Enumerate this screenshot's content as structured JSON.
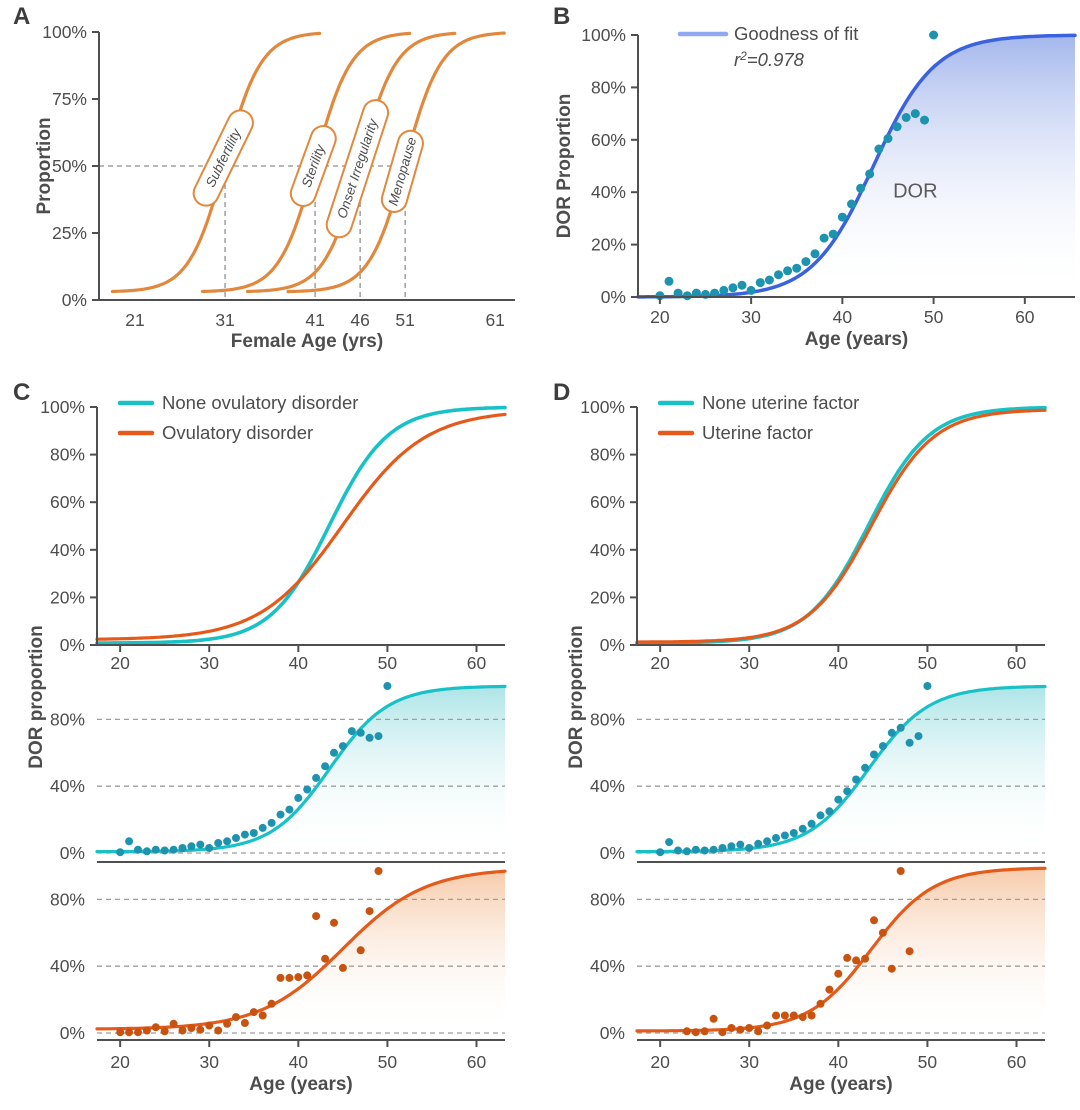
{
  "figure": {
    "description": "Four-panel figure of fertility decline and DOR proportion versus female age"
  },
  "style": {
    "text_color": "#4d4d4d",
    "spine_color": "#4f4f4f",
    "grid_color": "#9e9e9e",
    "guide_color": "#8f8f8f",
    "annotation_color": "#5a5a5a",
    "background": "#ffffff"
  },
  "chart_data": [
    {
      "id": "A",
      "type": "line",
      "xlabel": "Female Age (yrs)",
      "ylabel": "Proportion",
      "x_domain": [
        17.0,
        63.2
      ],
      "xticks": [
        21,
        31,
        41,
        46,
        51,
        61
      ],
      "yticks": [
        0,
        25,
        50,
        75,
        100
      ],
      "ytick_suffix": "%",
      "line_color": "#E2883D",
      "baseline_pct": 3,
      "amplitude_pct": 97,
      "slope_years": 2.0,
      "guide_level_pct": 50,
      "curves": [
        {
          "label": "Subfertility",
          "midpoint_age": 31,
          "draw_range": [
            18.5,
            41.5
          ],
          "label_center": {
            "age": 30.8,
            "pct": 53
          },
          "label_angle": -64
        },
        {
          "label": "Sterility",
          "midpoint_age": 41,
          "draw_range": [
            28.5,
            51.5
          ],
          "label_center": {
            "age": 40.8,
            "pct": 50
          },
          "label_angle": -70
        },
        {
          "label": "Onset Irregularity",
          "midpoint_age": 46,
          "draw_range": [
            33.5,
            56.5
          ],
          "label_center": {
            "age": 45.7,
            "pct": 49
          },
          "label_angle": -72
        },
        {
          "label": "Menopause",
          "midpoint_age": 51,
          "draw_range": [
            38.0,
            62.0
          ],
          "label_center": {
            "age": 50.7,
            "pct": 48
          },
          "label_angle": -74
        }
      ]
    },
    {
      "id": "B",
      "type": "scatter",
      "xlabel": "Age (years)",
      "ylabel": "DOR Proportion",
      "x_domain": [
        17.6,
        65.5
      ],
      "xticks": [
        20,
        30,
        40,
        50,
        60
      ],
      "yticks": [
        0,
        20,
        40,
        60,
        80,
        100
      ],
      "ytick_suffix": "%",
      "legend": {
        "label": "Goodness of fit",
        "stat_prefix": "r",
        "stat_sup": "2",
        "stat_rest": "=0.978",
        "swatch_color": "#8FA8F0"
      },
      "fit": {
        "midpoint_age": 43.4,
        "slope_years": 3.35,
        "base_pct": 0,
        "amplitude_pct": 100,
        "line_color": "#3A62DE",
        "fill_top_color": "#9FB3EC"
      },
      "annotation": {
        "text": "DOR",
        "age": 48,
        "pct": 38
      },
      "scatter": {
        "color": "#1E93B0",
        "points": [
          [
            20,
            0.5
          ],
          [
            21,
            6
          ],
          [
            22,
            1.5
          ],
          [
            23,
            0.5
          ],
          [
            24,
            1.5
          ],
          [
            25,
            1
          ],
          [
            26,
            1.5
          ],
          [
            27,
            2.5
          ],
          [
            28,
            3.5
          ],
          [
            29,
            4.5
          ],
          [
            30,
            2.5
          ],
          [
            31,
            5.5
          ],
          [
            32,
            6.5
          ],
          [
            33,
            8.5
          ],
          [
            34,
            10
          ],
          [
            35,
            11
          ],
          [
            36,
            13.5
          ],
          [
            37,
            16.5
          ],
          [
            38,
            22.5
          ],
          [
            39,
            24
          ],
          [
            40,
            30.5
          ],
          [
            41,
            35.5
          ],
          [
            42,
            41.5
          ],
          [
            43,
            47
          ],
          [
            44,
            56.5
          ],
          [
            45,
            60.5
          ],
          [
            46,
            65
          ],
          [
            47,
            68.5
          ],
          [
            48,
            70
          ],
          [
            49,
            67.5
          ],
          [
            50,
            100
          ]
        ]
      }
    },
    {
      "id": "C",
      "type": "scatter+line",
      "xlabel": "Age (years)",
      "ylabel": "DOR proportion",
      "x_domain": [
        17.4,
        63.2
      ],
      "xticks": [
        20,
        30,
        40,
        50,
        60
      ],
      "ytick_suffix": "%",
      "top": {
        "yticks": [
          0,
          20,
          40,
          60,
          80,
          100
        ],
        "legend": [
          {
            "label": "None ovulatory disorder",
            "color": "#17C1C6"
          },
          {
            "label": "Ovulatory disorder",
            "color": "#E55A1B"
          }
        ],
        "curves": [
          {
            "name": "None ovulatory disorder",
            "midpoint_age": 43.5,
            "slope_years": 3.3,
            "base_pct": 0.8,
            "amplitude_pct": 99.2,
            "color": "#17C1C6"
          },
          {
            "name": "Ovulatory disorder",
            "midpoint_age": 45.0,
            "slope_years": 4.6,
            "base_pct": 2.2,
            "amplitude_pct": 96.5,
            "color": "#E55A1B"
          }
        ]
      },
      "mini": [
        {
          "name": "None ovulatory disorder",
          "yticks": [
            0,
            40,
            80
          ],
          "curve": {
            "midpoint_age": 43.5,
            "slope_years": 3.3,
            "base_pct": 0.8,
            "amplitude_pct": 99.2,
            "color": "#17C1C6",
            "fill_top_color": "#A9E3E6"
          },
          "scatter": {
            "color": "#1E93B0",
            "points": [
              [
                20,
                0.5
              ],
              [
                21,
                7
              ],
              [
                22,
                2
              ],
              [
                23,
                1
              ],
              [
                24,
                2
              ],
              [
                25,
                1.5
              ],
              [
                26,
                2
              ],
              [
                27,
                3
              ],
              [
                28,
                4
              ],
              [
                29,
                5
              ],
              [
                30,
                3
              ],
              [
                31,
                6
              ],
              [
                32,
                7
              ],
              [
                33,
                9
              ],
              [
                34,
                11
              ],
              [
                35,
                12
              ],
              [
                36,
                15
              ],
              [
                37,
                18
              ],
              [
                38,
                23
              ],
              [
                39,
                26
              ],
              [
                40,
                33
              ],
              [
                41,
                38
              ],
              [
                42,
                45
              ],
              [
                43,
                52
              ],
              [
                44,
                60
              ],
              [
                45,
                64
              ],
              [
                46,
                73
              ],
              [
                47,
                72
              ],
              [
                48,
                69
              ],
              [
                49,
                70
              ],
              [
                50,
                100
              ]
            ]
          }
        },
        {
          "name": "Ovulatory disorder",
          "yticks": [
            0,
            40,
            80
          ],
          "curve": {
            "midpoint_age": 45.0,
            "slope_years": 4.6,
            "base_pct": 2.2,
            "amplitude_pct": 96.5,
            "color": "#E55A1B",
            "fill_top_color": "#F6C8A6"
          },
          "scatter": {
            "color": "#C8520F",
            "points": [
              [
                20,
                0.5
              ],
              [
                21,
                0.5
              ],
              [
                22,
                0.5
              ],
              [
                23,
                1.5
              ],
              [
                24,
                3.5
              ],
              [
                25,
                1
              ],
              [
                26,
                5.5
              ],
              [
                27,
                1.5
              ],
              [
                28,
                3
              ],
              [
                29,
                2
              ],
              [
                30,
                4.5
              ],
              [
                31,
                1.5
              ],
              [
                32,
                5.5
              ],
              [
                33,
                9.5
              ],
              [
                34,
                6
              ],
              [
                35,
                12.5
              ],
              [
                36,
                10.5
              ],
              [
                37,
                17.5
              ],
              [
                38,
                33
              ],
              [
                39,
                33
              ],
              [
                40,
                33.5
              ],
              [
                41,
                34.5
              ],
              [
                42,
                70
              ],
              [
                43,
                44.5
              ],
              [
                44,
                66
              ],
              [
                45,
                39
              ],
              [
                47,
                49.5
              ],
              [
                48,
                73
              ],
              [
                49,
                97
              ]
            ]
          }
        }
      ]
    },
    {
      "id": "D",
      "type": "scatter+line",
      "xlabel": "Age (years)",
      "ylabel": "DOR proportion",
      "x_domain": [
        17.4,
        63.2
      ],
      "xticks": [
        20,
        30,
        40,
        50,
        60
      ],
      "ytick_suffix": "%",
      "top": {
        "yticks": [
          0,
          20,
          40,
          60,
          80,
          100
        ],
        "legend": [
          {
            "label": "None uterine factor",
            "color": "#17C1C6"
          },
          {
            "label": "Uterine factor",
            "color": "#E55A1B"
          }
        ],
        "curves": [
          {
            "name": "None uterine factor",
            "midpoint_age": 43.4,
            "slope_years": 3.4,
            "base_pct": 0.8,
            "amplitude_pct": 99.2,
            "color": "#17C1C6"
          },
          {
            "name": "Uterine factor",
            "midpoint_age": 43.7,
            "slope_years": 3.5,
            "base_pct": 1.2,
            "amplitude_pct": 97.8,
            "color": "#E55A1B"
          }
        ]
      },
      "mini": [
        {
          "name": "None uterine factor",
          "yticks": [
            0,
            40,
            80
          ],
          "curve": {
            "midpoint_age": 43.4,
            "slope_years": 3.4,
            "base_pct": 0.8,
            "amplitude_pct": 99.2,
            "color": "#17C1C6",
            "fill_top_color": "#A9E3E6"
          },
          "scatter": {
            "color": "#1E93B0",
            "points": [
              [
                20,
                0.5
              ],
              [
                21,
                6.5
              ],
              [
                22,
                1.5
              ],
              [
                23,
                1
              ],
              [
                24,
                2
              ],
              [
                25,
                1.5
              ],
              [
                26,
                2
              ],
              [
                27,
                3
              ],
              [
                28,
                4
              ],
              [
                29,
                5
              ],
              [
                30,
                3
              ],
              [
                31,
                5.5
              ],
              [
                32,
                7
              ],
              [
                33,
                9
              ],
              [
                34,
                10.5
              ],
              [
                35,
                12
              ],
              [
                36,
                14.5
              ],
              [
                37,
                17.5
              ],
              [
                38,
                22.5
              ],
              [
                39,
                25
              ],
              [
                40,
                32
              ],
              [
                41,
                37
              ],
              [
                42,
                44
              ],
              [
                43,
                51
              ],
              [
                44,
                59
              ],
              [
                45,
                64
              ],
              [
                46,
                72
              ],
              [
                47,
                75
              ],
              [
                48,
                66
              ],
              [
                49,
                70
              ],
              [
                50,
                100
              ]
            ]
          }
        },
        {
          "name": "Uterine factor",
          "yticks": [
            0,
            40,
            80
          ],
          "curve": {
            "midpoint_age": 43.7,
            "slope_years": 3.5,
            "base_pct": 1.2,
            "amplitude_pct": 97.8,
            "color": "#E55A1B",
            "fill_top_color": "#F6C8A6"
          },
          "scatter": {
            "color": "#C8520F",
            "points": [
              [
                23,
                1
              ],
              [
                24,
                0.5
              ],
              [
                25,
                1
              ],
              [
                26,
                8.5
              ],
              [
                27,
                0.5
              ],
              [
                28,
                3
              ],
              [
                29,
                2
              ],
              [
                30,
                3
              ],
              [
                31,
                1
              ],
              [
                32,
                4.5
              ],
              [
                33,
                10.5
              ],
              [
                34,
                10.5
              ],
              [
                35,
                10.5
              ],
              [
                36,
                9.5
              ],
              [
                37,
                10.5
              ],
              [
                38,
                17.5
              ],
              [
                39,
                26
              ],
              [
                40,
                35.5
              ],
              [
                41,
                45
              ],
              [
                42,
                43.5
              ],
              [
                43,
                44.5
              ],
              [
                44,
                67.5
              ],
              [
                45,
                60
              ],
              [
                46,
                38.5
              ],
              [
                47,
                97
              ],
              [
                48,
                49
              ]
            ]
          }
        }
      ]
    }
  ]
}
